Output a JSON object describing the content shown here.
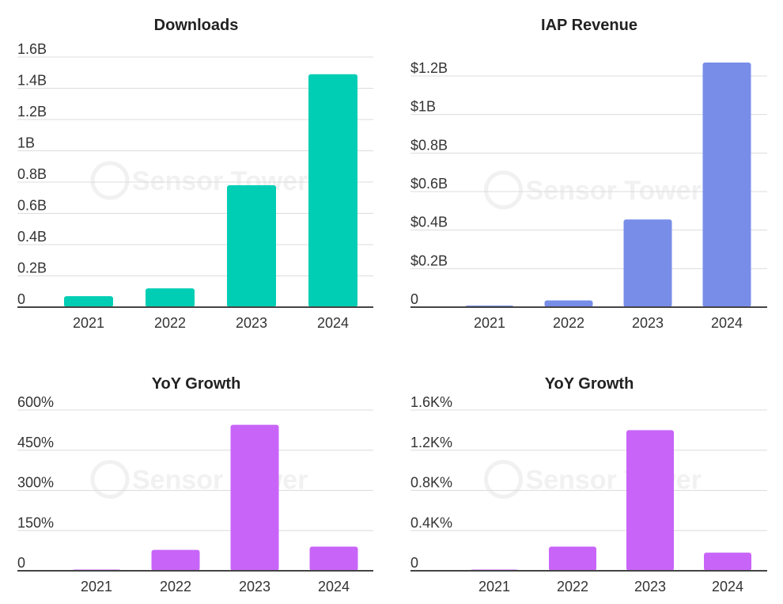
{
  "watermark": "Sensor Tower",
  "chart_data": [
    {
      "type": "bar",
      "title": "Downloads",
      "categories": [
        "2021",
        "2022",
        "2023",
        "2024"
      ],
      "values": [
        70000000,
        120000000,
        780000000,
        1490000000
      ],
      "yticks": [
        0,
        200000000,
        400000000,
        600000000,
        800000000,
        1000000000,
        1200000000,
        1400000000,
        1600000000
      ],
      "ytick_labels": [
        "0",
        "0.2B",
        "0.4B",
        "0.6B",
        "0.8B",
        "1B",
        "1.2B",
        "1.4B",
        "1.6B"
      ],
      "ylim": [
        0,
        1600000000
      ],
      "color": "#00CEB4",
      "grid": true
    },
    {
      "type": "bar",
      "title": "IAP Revenue",
      "categories": [
        "2021",
        "2022",
        "2023",
        "2024"
      ],
      "values": [
        8000000,
        35000000,
        455000000,
        1270000000
      ],
      "yticks": [
        0,
        200000000,
        400000000,
        600000000,
        800000000,
        1000000000,
        1200000000
      ],
      "ytick_labels": [
        "0",
        "$0.2B",
        "$0.4B",
        "$0.6B",
        "$0.8B",
        "$1B",
        "$1.2B"
      ],
      "ylim": [
        0,
        1250000000
      ],
      "color": "#778DE8",
      "grid": true
    },
    {
      "type": "bar",
      "title": "YoY Growth",
      "categories": [
        "2021",
        "2022",
        "2023",
        "2024"
      ],
      "values": [
        1,
        78,
        545,
        90
      ],
      "yticks": [
        0,
        150,
        300,
        450,
        600
      ],
      "ytick_labels": [
        "0",
        "150%",
        "300%",
        "450%",
        "600%"
      ],
      "ylim": [
        0,
        600
      ],
      "color": "#C865F8",
      "grid": true
    },
    {
      "type": "bar",
      "title": "YoY Growth",
      "categories": [
        "2021",
        "2022",
        "2023",
        "2024"
      ],
      "values": [
        5,
        240,
        1400,
        180
      ],
      "yticks": [
        0,
        400,
        800,
        1200,
        1600
      ],
      "ytick_labels": [
        "0",
        "0.4K%",
        "0.8K%",
        "1.2K%",
        "1.6K%"
      ],
      "ylim": [
        0,
        1600
      ],
      "color": "#C865F8",
      "grid": true
    }
  ]
}
